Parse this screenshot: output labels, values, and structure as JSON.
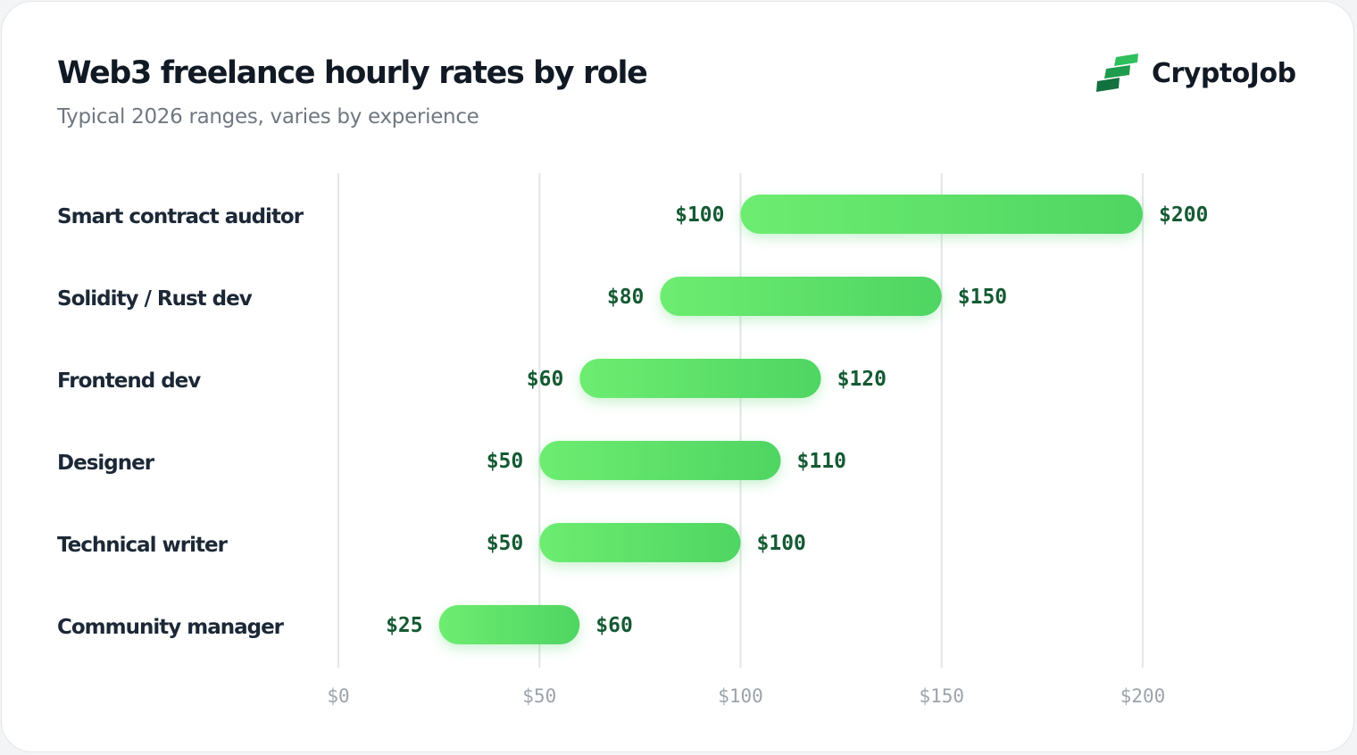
{
  "header": {
    "title": "Web3 freelance hourly rates by role",
    "subtitle": "Typical 2026 ranges, varies by experience"
  },
  "brand": {
    "name": "CryptoJob",
    "logo_icon": "stacked-green-bars-logo-icon",
    "colors": {
      "dark": "#13703f",
      "light": "#2fbf5c"
    }
  },
  "colors": {
    "bar_start": "#6ded70",
    "bar_end": "#4fd563",
    "value_label": "#155a33",
    "tick_label": "#9ca3ab",
    "grid": "#e3e5e8",
    "role_label": "#1c2836"
  },
  "chart_data": {
    "type": "range-bar",
    "title": "Web3 freelance hourly rates by role",
    "subtitle": "Typical 2026 ranges, varies by experience",
    "orientation": "horizontal",
    "categories": [
      "Smart contract auditor",
      "Solidity / Rust dev",
      "Frontend dev",
      "Designer",
      "Technical writer",
      "Community manager"
    ],
    "series": [
      {
        "values": [
          [
            100,
            200
          ],
          [
            80,
            150
          ],
          [
            60,
            120
          ],
          [
            50,
            110
          ],
          [
            50,
            100
          ],
          [
            25,
            60
          ]
        ]
      }
    ],
    "value_labels": [
      [
        "$100",
        "$200"
      ],
      [
        "$80",
        "$150"
      ],
      [
        "$60",
        "$120"
      ],
      [
        "$50",
        "$110"
      ],
      [
        "$50",
        "$100"
      ],
      [
        "$25",
        "$60"
      ]
    ],
    "x_ticks": [
      0,
      50,
      100,
      150,
      200
    ],
    "x_tick_labels": [
      "$0",
      "$50",
      "$100",
      "$150",
      "$200"
    ],
    "xlim": [
      0,
      200
    ],
    "grid": true,
    "legend": "none"
  }
}
